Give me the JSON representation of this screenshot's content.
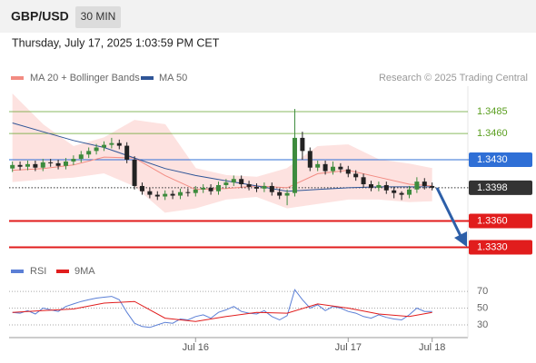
{
  "header": {
    "symbol": "GBP/USD",
    "interval": "30 MIN",
    "timestamp": "Thursday, July 17, 2025 1:03:59 PM CET",
    "credit": "Research © 2025 Trading Central"
  },
  "chart_data": [
    {
      "type": "candlestick",
      "open": [
        1.342,
        1.3424,
        1.3422,
        1.3425,
        1.3421,
        1.3427,
        1.3426,
        1.3423,
        1.3428,
        1.3431,
        1.3436,
        1.344,
        1.3444,
        1.3447,
        1.3449,
        1.3446,
        1.343,
        1.34,
        1.3394,
        1.339,
        1.3388,
        1.3391,
        1.3389,
        1.3393,
        1.3392,
        1.3396,
        1.3398,
        1.3394,
        1.3401,
        1.3404,
        1.3408,
        1.3402,
        1.3399,
        1.3397,
        1.34,
        1.3393,
        1.3389,
        1.3392,
        1.3455,
        1.344,
        1.3421,
        1.3425,
        1.3417,
        1.3422,
        1.3419,
        1.3414,
        1.341,
        1.3402,
        1.3398,
        1.3401,
        1.3395,
        1.3392,
        1.339,
        1.3396,
        1.3405,
        1.34
      ],
      "high": [
        1.3428,
        1.3428,
        1.3429,
        1.3429,
        1.3431,
        1.3431,
        1.343,
        1.3432,
        1.3435,
        1.344,
        1.3444,
        1.3448,
        1.3451,
        1.3455,
        1.3453,
        1.345,
        1.3434,
        1.3404,
        1.3398,
        1.3394,
        1.3395,
        1.3395,
        1.3397,
        1.3397,
        1.34,
        1.3402,
        1.3402,
        1.3405,
        1.3408,
        1.3412,
        1.3412,
        1.3406,
        1.3403,
        1.3404,
        1.3404,
        1.3397,
        1.3396,
        1.3488,
        1.3462,
        1.3444,
        1.3429,
        1.3429,
        1.3428,
        1.3426,
        1.3423,
        1.3418,
        1.3414,
        1.3406,
        1.3405,
        1.3405,
        1.3399,
        1.3394,
        1.34,
        1.341,
        1.3409,
        1.3404
      ],
      "low": [
        1.3416,
        1.3418,
        1.3418,
        1.3417,
        1.3417,
        1.3422,
        1.3419,
        1.3419,
        1.3424,
        1.3427,
        1.3432,
        1.3436,
        1.344,
        1.3443,
        1.3442,
        1.3426,
        1.3396,
        1.339,
        1.3386,
        1.3384,
        1.3384,
        1.3385,
        1.3385,
        1.3388,
        1.3388,
        1.3392,
        1.339,
        1.339,
        1.3397,
        1.34,
        1.3398,
        1.3395,
        1.3393,
        1.3393,
        1.3389,
        1.3385,
        1.3378,
        1.3388,
        1.343,
        1.3417,
        1.3417,
        1.3413,
        1.3413,
        1.3415,
        1.341,
        1.3406,
        1.3398,
        1.3394,
        1.3394,
        1.3391,
        1.3386,
        1.3384,
        1.3386,
        1.3392,
        1.3396,
        1.3395
      ],
      "close": [
        1.3424,
        1.3422,
        1.3425,
        1.3421,
        1.3427,
        1.3426,
        1.3423,
        1.3428,
        1.3431,
        1.3436,
        1.344,
        1.3444,
        1.3447,
        1.3449,
        1.3446,
        1.343,
        1.34,
        1.3394,
        1.339,
        1.3388,
        1.3391,
        1.3389,
        1.3393,
        1.3392,
        1.3396,
        1.3398,
        1.3394,
        1.3401,
        1.3404,
        1.3408,
        1.3402,
        1.3399,
        1.3397,
        1.34,
        1.3393,
        1.3389,
        1.3392,
        1.3455,
        1.344,
        1.3421,
        1.3425,
        1.3417,
        1.3422,
        1.3419,
        1.3414,
        1.341,
        1.3402,
        1.3398,
        1.3401,
        1.3395,
        1.3392,
        1.339,
        1.3396,
        1.3405,
        1.34,
        1.3398
      ],
      "up_color": "#3d8b3d",
      "down_color": "#222222",
      "bands": {
        "name": "MA 20 + Bollinger Bands",
        "color": "#f28b82",
        "fill": "#fde2e0",
        "x": [
          0,
          4,
          8,
          12,
          16,
          20,
          24,
          28,
          32,
          36,
          40,
          44,
          48,
          52,
          55
        ],
        "middle": [
          1.3418,
          1.342,
          1.3424,
          1.3433,
          1.3432,
          1.3412,
          1.3396,
          1.3397,
          1.34,
          1.3398,
          1.3414,
          1.3418,
          1.341,
          1.3402,
          1.34
        ],
        "upper": [
          1.3505,
          1.347,
          1.3445,
          1.3455,
          1.3475,
          1.347,
          1.342,
          1.3412,
          1.341,
          1.342,
          1.3445,
          1.3447,
          1.343,
          1.3425,
          1.342
        ],
        "lower": [
          1.3405,
          1.3408,
          1.341,
          1.3415,
          1.34,
          1.337,
          1.3375,
          1.3385,
          1.3388,
          1.3375,
          1.338,
          1.3385,
          1.3385,
          1.3382,
          1.3383
        ]
      },
      "series": [
        {
          "name": "MA 50",
          "color": "#2f5597",
          "x": [
            0,
            4,
            8,
            12,
            16,
            20,
            24,
            28,
            32,
            36,
            40,
            44,
            48,
            52,
            55
          ],
          "values": [
            1.3472,
            1.3462,
            1.3452,
            1.3444,
            1.3432,
            1.342,
            1.3412,
            1.3406,
            1.34,
            1.3394,
            1.3396,
            1.3398,
            1.3399,
            1.3399,
            1.3399
          ]
        }
      ],
      "ylim": [
        1.3317,
        1.3514
      ],
      "yticks": [
        1.3485,
        {
          "value": 1.346,
          "label": "1.3460"
        },
        {
          "value": 1.343,
          "label": "1.3430"
        },
        1.3398,
        {
          "value": 1.336,
          "label": "1.3360"
        },
        {
          "value": 1.333,
          "label": "1.3330"
        }
      ],
      "ytick_colors": [
        "#5a9e1f",
        "#5a9e1f",
        "#2f6fd6",
        "#333333",
        "#e11d1d",
        "#e11d1d"
      ],
      "ytick_lines": [
        "thin",
        "thin",
        "thin",
        "dotted",
        "thick",
        "thick"
      ],
      "ytick_boxes": [
        false,
        false,
        true,
        true,
        true,
        true
      ]
    },
    {
      "type": "line",
      "categories": [
        null,
        null,
        null,
        null,
        null,
        null,
        null,
        null,
        null,
        null,
        null,
        null,
        null,
        null,
        null,
        null,
        null,
        null,
        null,
        null,
        null,
        null,
        null,
        null,
        "Jul 16",
        null,
        null,
        null,
        null,
        null,
        null,
        null,
        null,
        null,
        null,
        null,
        null,
        null,
        null,
        null,
        null,
        null,
        null,
        null,
        "Jul 17",
        null,
        null,
        null,
        null,
        null,
        null,
        null,
        null,
        null,
        null,
        "Jul 18"
      ],
      "series": [
        {
          "name": "RSI",
          "color": "#5b7fd6",
          "values": [
            45,
            44,
            47,
            43,
            50,
            48,
            46,
            52,
            55,
            58,
            60,
            62,
            63,
            64,
            60,
            45,
            32,
            28,
            27,
            30,
            33,
            32,
            37,
            36,
            40,
            42,
            38,
            45,
            48,
            52,
            46,
            44,
            43,
            47,
            40,
            36,
            41,
            72,
            60,
            50,
            54,
            47,
            52,
            50,
            46,
            44,
            40,
            38,
            42,
            39,
            37,
            36,
            42,
            50,
            46,
            46
          ]
        },
        {
          "name": "9MA",
          "color": "#e11d1d",
          "x": [
            0,
            4,
            8,
            12,
            16,
            20,
            24,
            28,
            32,
            36,
            40,
            44,
            48,
            52,
            55
          ],
          "values": [
            45,
            47,
            49,
            56,
            58,
            38,
            34,
            40,
            45,
            44,
            55,
            50,
            43,
            40,
            45
          ]
        }
      ],
      "ylim": [
        17,
        82
      ],
      "yticks": [
        70,
        50,
        30
      ]
    }
  ]
}
